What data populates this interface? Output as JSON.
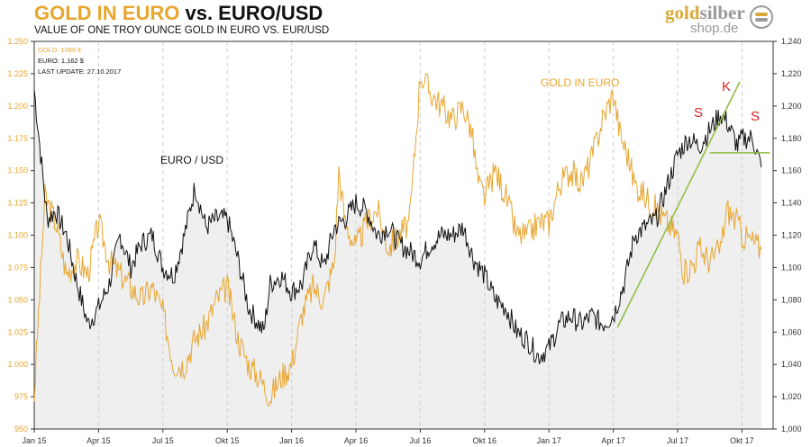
{
  "header": {
    "title_gold": "GOLD IN EURO",
    "title_rest": "vs. EURO/USD",
    "subtitle": "VALUE OF ONE TROY OUNCE GOLD IN EURO VS. EUR/USD"
  },
  "logo": {
    "gold": "gold",
    "silber": "silber",
    "shop": "shop.de"
  },
  "info": {
    "gold": "GOLD: 1089 €",
    "euro": "EURO: 1,162 $",
    "update": "LAST UPDATE: 27.10.2017"
  },
  "colors": {
    "gold": "#e8a630",
    "euro": "#111111",
    "fill": "#efefef",
    "trend": "#8dbb3c",
    "marker": "#e02020"
  },
  "chart_data": {
    "type": "line",
    "title": "GOLD IN EURO vs. EURO/USD",
    "x_unit": "months since Jan 2015",
    "x_ticks": [
      "Jan 15",
      "Apr 15",
      "Jul 15",
      "Okt 15",
      "Jan 16",
      "Apr 16",
      "Jul 16",
      "Okt 16",
      "Jan 17",
      "Apr 17",
      "Jul 17",
      "Okt 17"
    ],
    "xlim": [
      0,
      35
    ],
    "y_left": {
      "label": "Gold in Euro",
      "lim": [
        950,
        1250
      ],
      "ticks": [
        "950",
        "975",
        "1.000",
        "1.025",
        "1.050",
        "1.075",
        "1.100",
        "1.125",
        "1.150",
        "1.175",
        "1.200",
        "1.225",
        "1.250"
      ]
    },
    "y_right": {
      "label": "EUR/USD",
      "lim": [
        1000,
        1240
      ],
      "ticks": [
        "1,000",
        "1,020",
        "1,040",
        "1,060",
        "1,080",
        "1,100",
        "1,120",
        "1,140",
        "1,160",
        "1,180",
        "1,200",
        "1,220",
        "1,240"
      ]
    },
    "series": [
      {
        "name": "GOLD IN EURO",
        "axis": "left",
        "points": [
          [
            0,
            975
          ],
          [
            0.2,
            1040
          ],
          [
            0.5,
            1130
          ],
          [
            1,
            1110
          ],
          [
            1.5,
            1070
          ],
          [
            2,
            1080
          ],
          [
            2.5,
            1070
          ],
          [
            3,
            1110
          ],
          [
            3.5,
            1080
          ],
          [
            4,
            1070
          ],
          [
            4.5,
            1060
          ],
          [
            5,
            1050
          ],
          [
            5.5,
            1060
          ],
          [
            6,
            1040
          ],
          [
            6.5,
            1000
          ],
          [
            7,
            1000
          ],
          [
            7.5,
            1020
          ],
          [
            8,
            1030
          ],
          [
            8.5,
            1050
          ],
          [
            9,
            1060
          ],
          [
            9.5,
            1020
          ],
          [
            10,
            1000
          ],
          [
            10.5,
            990
          ],
          [
            11,
            975
          ],
          [
            11.5,
            990
          ],
          [
            12,
            1000
          ],
          [
            12.5,
            1040
          ],
          [
            13,
            1060
          ],
          [
            13.5,
            1050
          ],
          [
            14,
            1080
          ],
          [
            14.2,
            1150
          ],
          [
            14.5,
            1110
          ],
          [
            15,
            1090
          ],
          [
            15.5,
            1110
          ],
          [
            16,
            1120
          ],
          [
            16.5,
            1090
          ],
          [
            17,
            1100
          ],
          [
            17.5,
            1110
          ],
          [
            17.9,
            1200
          ],
          [
            18,
            1225
          ],
          [
            18.5,
            1210
          ],
          [
            19,
            1200
          ],
          [
            19.5,
            1190
          ],
          [
            20,
            1200
          ],
          [
            20.4,
            1180
          ],
          [
            20.7,
            1140
          ],
          [
            21,
            1130
          ],
          [
            21.5,
            1150
          ],
          [
            22,
            1130
          ],
          [
            22.5,
            1100
          ],
          [
            23,
            1100
          ],
          [
            23.5,
            1110
          ],
          [
            24,
            1110
          ],
          [
            24.5,
            1140
          ],
          [
            25,
            1150
          ],
          [
            25.5,
            1140
          ],
          [
            26,
            1160
          ],
          [
            26.5,
            1190
          ],
          [
            27,
            1210
          ],
          [
            27.3,
            1180
          ],
          [
            27.7,
            1160
          ],
          [
            28,
            1140
          ],
          [
            28.5,
            1130
          ],
          [
            29,
            1120
          ],
          [
            29.5,
            1110
          ],
          [
            30,
            1100
          ],
          [
            30.3,
            1070
          ],
          [
            30.8,
            1080
          ],
          [
            31,
            1090
          ],
          [
            31.5,
            1080
          ],
          [
            32,
            1090
          ],
          [
            32.3,
            1120
          ],
          [
            32.8,
            1110
          ],
          [
            33,
            1100
          ],
          [
            33.5,
            1095
          ],
          [
            33.9,
            1089
          ]
        ]
      },
      {
        "name": "EURO / USD",
        "axis": "right",
        "points": [
          [
            0,
            1210
          ],
          [
            0.3,
            1170
          ],
          [
            0.6,
            1130
          ],
          [
            1,
            1135
          ],
          [
            1.5,
            1120
          ],
          [
            2,
            1090
          ],
          [
            2.5,
            1065
          ],
          [
            3,
            1075
          ],
          [
            3.5,
            1090
          ],
          [
            4,
            1120
          ],
          [
            4.5,
            1100
          ],
          [
            5,
            1115
          ],
          [
            5.5,
            1120
          ],
          [
            6,
            1100
          ],
          [
            6.5,
            1095
          ],
          [
            7,
            1120
          ],
          [
            7.5,
            1150
          ],
          [
            8,
            1125
          ],
          [
            8.5,
            1130
          ],
          [
            9,
            1130
          ],
          [
            9.5,
            1105
          ],
          [
            10,
            1075
          ],
          [
            10.7,
            1060
          ],
          [
            11,
            1090
          ],
          [
            11.5,
            1095
          ],
          [
            12,
            1085
          ],
          [
            12.5,
            1090
          ],
          [
            13,
            1115
          ],
          [
            13.5,
            1100
          ],
          [
            14,
            1125
          ],
          [
            14.5,
            1130
          ],
          [
            15,
            1140
          ],
          [
            15.5,
            1135
          ],
          [
            16,
            1120
          ],
          [
            16.5,
            1125
          ],
          [
            17,
            1115
          ],
          [
            17.5,
            1110
          ],
          [
            18,
            1105
          ],
          [
            18.5,
            1115
          ],
          [
            19,
            1120
          ],
          [
            19.5,
            1120
          ],
          [
            20,
            1125
          ],
          [
            20.5,
            1105
          ],
          [
            21,
            1095
          ],
          [
            21.5,
            1080
          ],
          [
            22,
            1075
          ],
          [
            22.5,
            1060
          ],
          [
            23,
            1055
          ],
          [
            23.5,
            1045
          ],
          [
            24,
            1050
          ],
          [
            24.5,
            1065
          ],
          [
            25,
            1070
          ],
          [
            25.5,
            1065
          ],
          [
            26,
            1070
          ],
          [
            26.5,
            1065
          ],
          [
            27,
            1070
          ],
          [
            27.5,
            1090
          ],
          [
            28,
            1120
          ],
          [
            28.5,
            1125
          ],
          [
            29,
            1130
          ],
          [
            29.5,
            1150
          ],
          [
            30,
            1170
          ],
          [
            30.5,
            1180
          ],
          [
            31,
            1175
          ],
          [
            31.5,
            1185
          ],
          [
            32,
            1195
          ],
          [
            32.3,
            1190
          ],
          [
            32.8,
            1175
          ],
          [
            33,
            1180
          ],
          [
            33.5,
            1180
          ],
          [
            33.9,
            1162
          ]
        ]
      }
    ],
    "annotations": {
      "euro_label": "EURO / USD",
      "gold_label": "GOLD IN EURO",
      "s1": "S",
      "k": "K",
      "s2": "S"
    },
    "trendlines": [
      {
        "name": "uptrend",
        "axis": "right",
        "from": [
          27.2,
          1063
        ],
        "to": [
          32.9,
          1215
        ]
      },
      {
        "name": "neckline",
        "axis": "right",
        "from": [
          31.5,
          1171
        ],
        "to": [
          34.3,
          1171
        ]
      }
    ],
    "grid": "vertical dashed",
    "legend": "top-left"
  }
}
